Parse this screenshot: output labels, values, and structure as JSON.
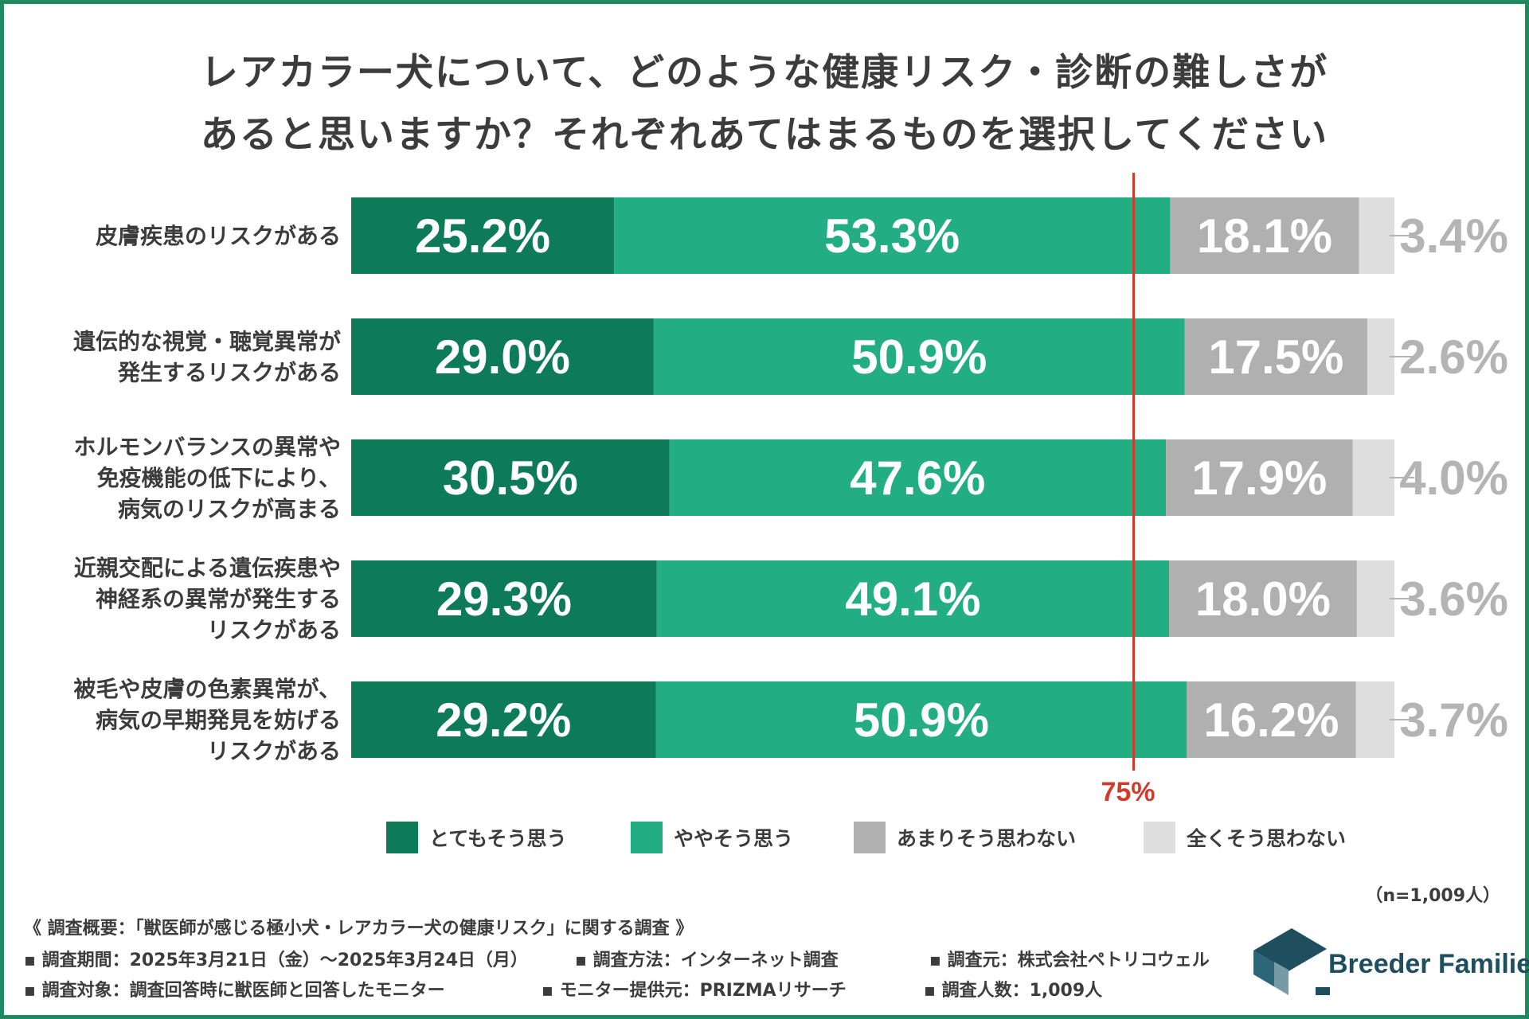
{
  "title": {
    "line1": "レアカラー犬について、どのような健康リスク・診断の難しさが",
    "line2": "あると思いますか？それぞれあてはまるものを選択してください"
  },
  "chart_data": {
    "type": "bar",
    "orientation": "horizontal",
    "stacked": true,
    "percent_stacked": true,
    "title": "レアカラー犬について、どのような健康リスク・診断の難しさがあると思いますか？それぞれあてはまるものを選択してください",
    "categories": [
      [
        "皮膚疾患のリスクがある"
      ],
      [
        "遺伝的な視覚・聴覚異常が",
        "発生するリスクがある"
      ],
      [
        "ホルモンバランスの異常や",
        "免疫機能の低下により、",
        "病気のリスクが高まる"
      ],
      [
        "近親交配による遺伝疾患や",
        "神経系の異常が発生する",
        "リスクがある"
      ],
      [
        "被毛や皮膚の色素異常が、",
        "病気の早期発見を妨げる",
        "リスクがある"
      ]
    ],
    "series": [
      {
        "name": "とてもそう思う",
        "color": "#0d7b58",
        "values": [
          25.2,
          29.0,
          30.5,
          29.3,
          29.2
        ],
        "labels": [
          "25.2%",
          "29.0%",
          "30.5%",
          "29.3%",
          "29.2%"
        ]
      },
      {
        "name": "ややそう思う",
        "color": "#22ae82",
        "values": [
          53.3,
          50.9,
          47.6,
          49.1,
          50.9
        ],
        "labels": [
          "53.3%",
          "50.9%",
          "47.6%",
          "49.1%",
          "50.9%"
        ]
      },
      {
        "name": "あまりそう思わない",
        "color": "#b0b0b0",
        "values": [
          18.1,
          17.5,
          17.9,
          18.0,
          16.2
        ],
        "labels": [
          "18.1%",
          "17.5%",
          "17.9%",
          "18.0%",
          "16.2%"
        ]
      },
      {
        "name": "全くそう思わない",
        "color": "#dedede",
        "values": [
          3.4,
          2.6,
          4.0,
          3.6,
          3.7
        ],
        "labels": [
          "3.4%",
          "2.6%",
          "4.0%",
          "3.6%",
          "3.7%"
        ]
      }
    ],
    "xlim": [
      0,
      100
    ],
    "reference_line": {
      "value": 75,
      "label": "75%",
      "color": "#d13b2e"
    },
    "grid": false,
    "legend_position": "bottom"
  },
  "sample_size": "（n=1,009人）",
  "footer": {
    "overview": "《 調査概要：「獣医師が感じる極小犬・レアカラー犬の健康リスク」に関する調査 》",
    "period": "▪ 調査期間：2025年3月21日（金）～2025年3月24日（月）",
    "method": "▪ 調査方法：インターネット調査",
    "source": "▪ 調査元：株式会社ペトリコウェル",
    "target": "▪ 調査対象：調査回答時に獣医師と回答したモニター",
    "provider": "▪ モニター提供元：PRIZMAリサーチ",
    "count": "▪ 調査人数：1,009人"
  },
  "logo": {
    "text": "Breeder Families",
    "color": "#1f4e5f"
  }
}
